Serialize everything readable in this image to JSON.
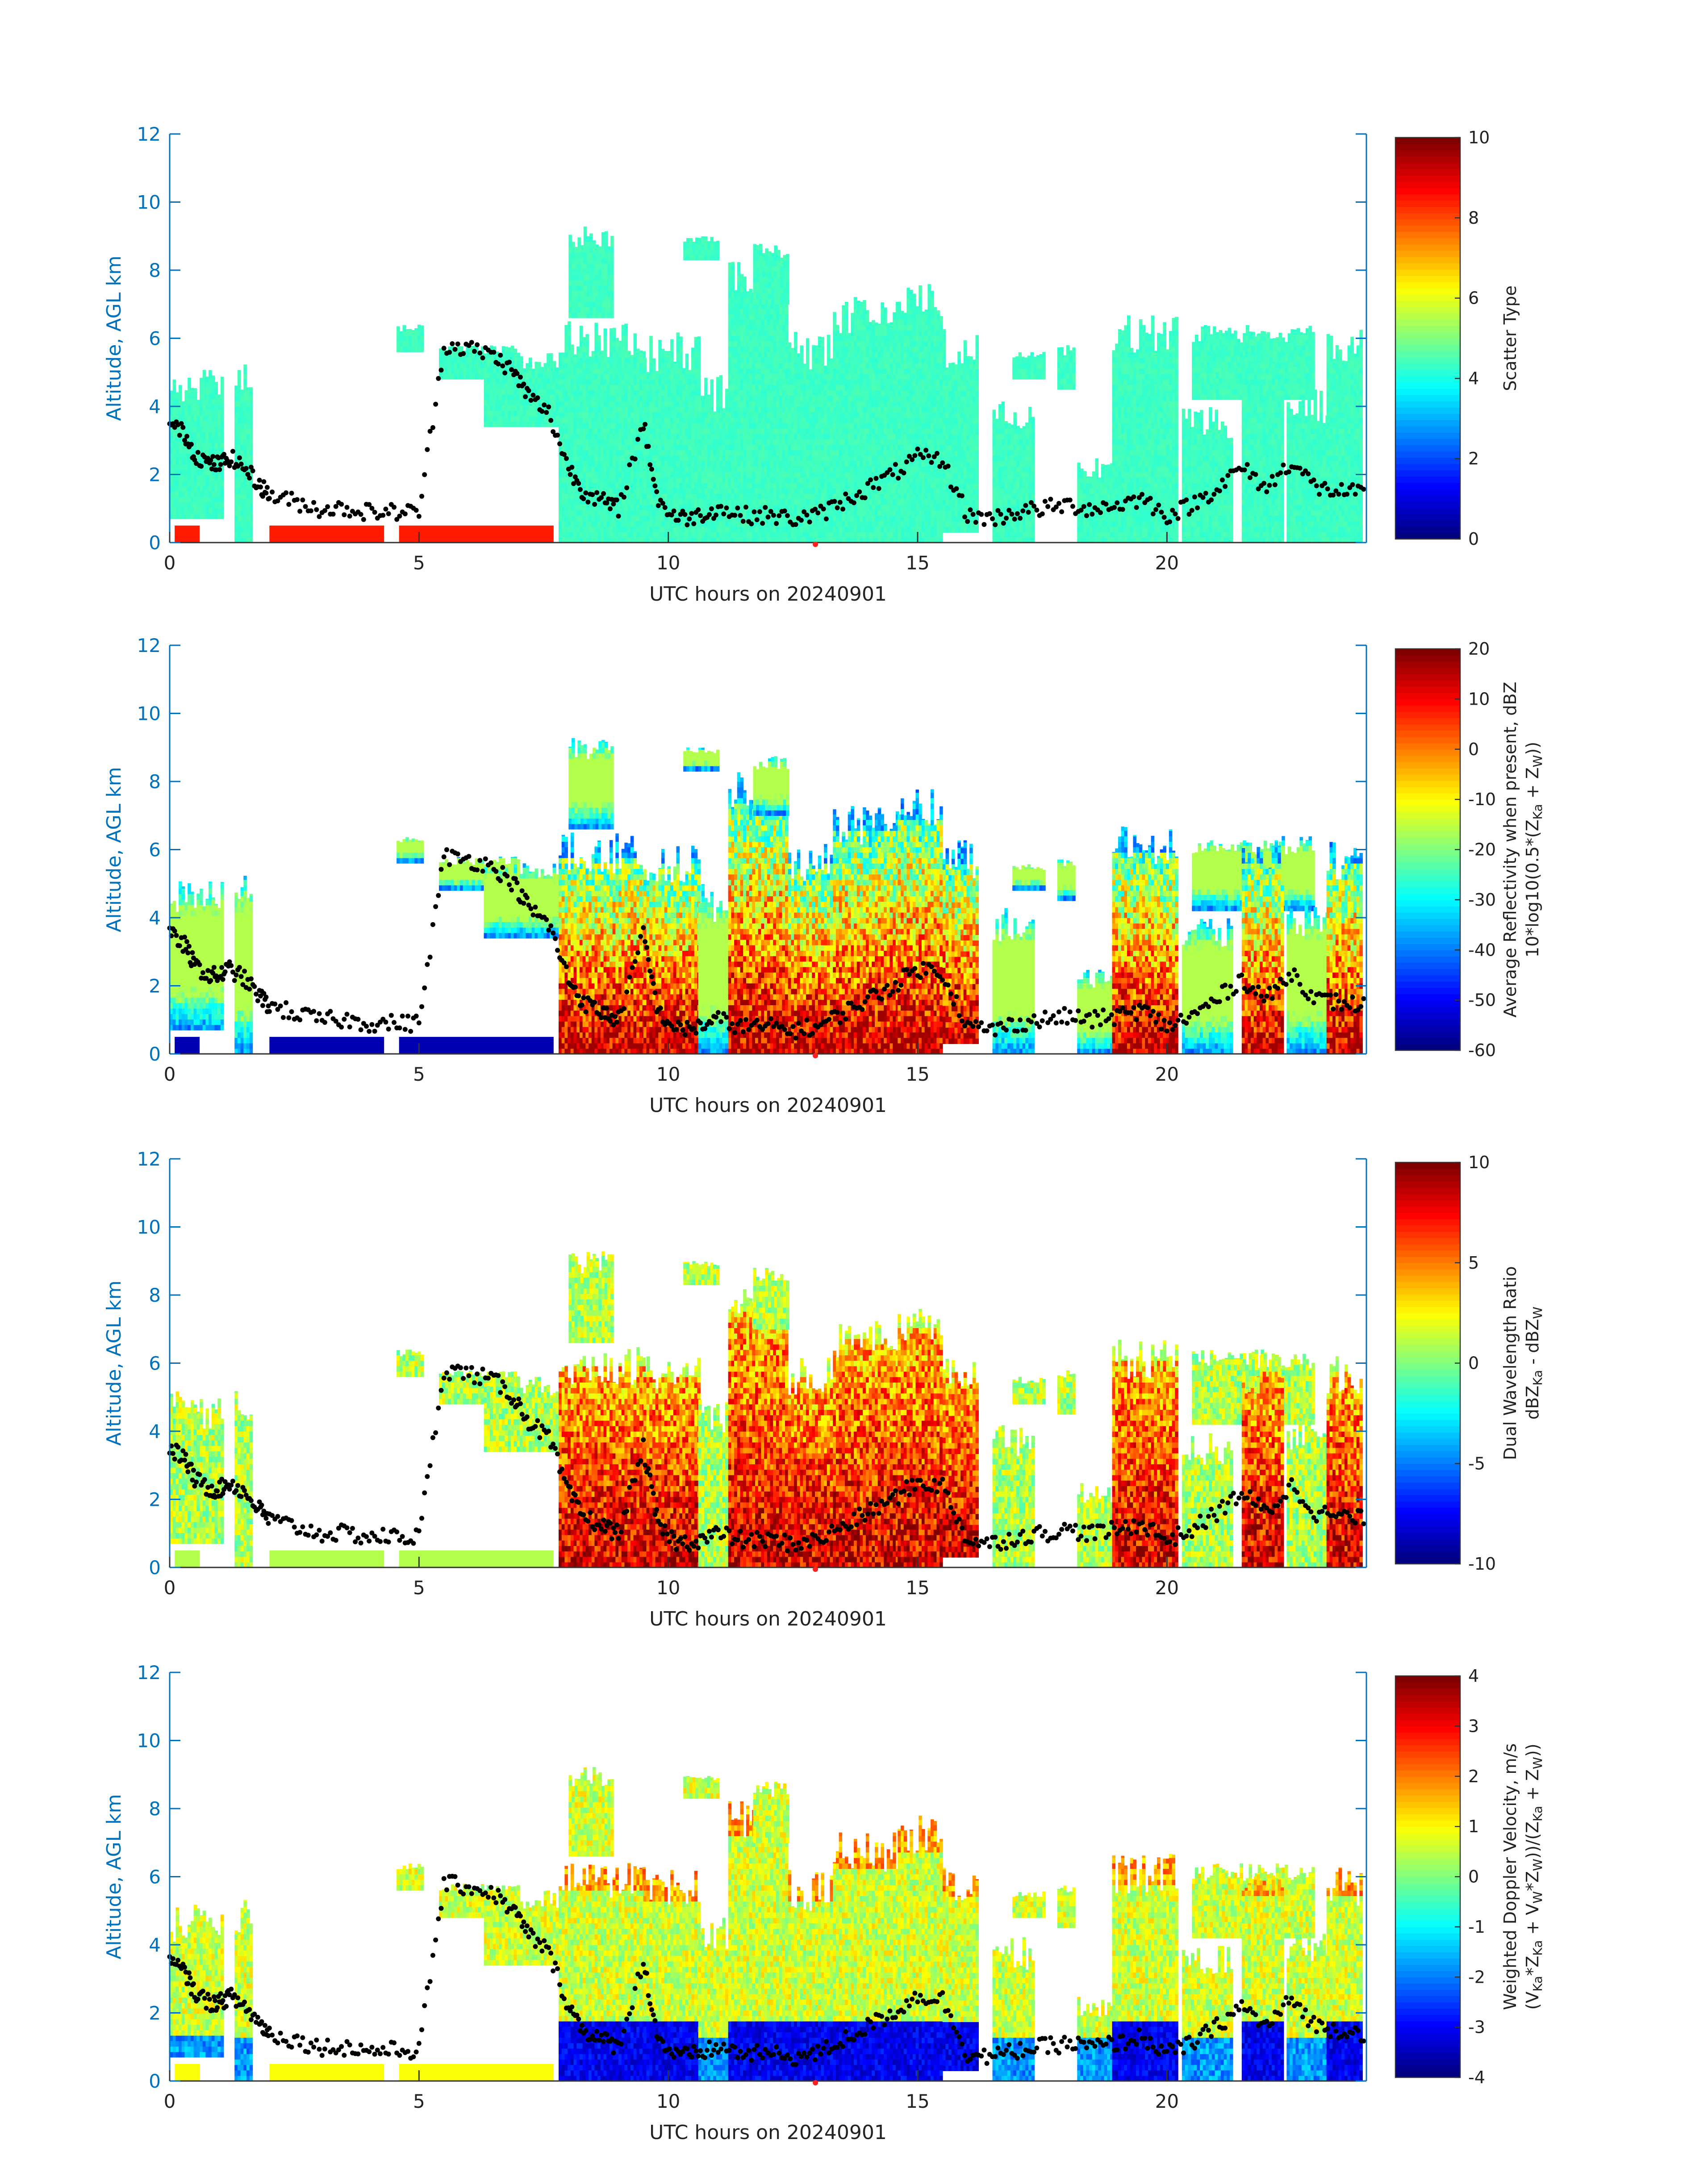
{
  "chart_data": [
    {
      "type": "heatmap",
      "xlabel": "UTC hours on 20240901",
      "ylabel": "Altitude, AGL km",
      "xlim": [
        0,
        24
      ],
      "ylim": [
        0,
        12
      ],
      "xticks": [
        "0",
        "5",
        "10",
        "15",
        "20"
      ],
      "yticks": [
        "0",
        "2",
        "4",
        "6",
        "8",
        "10",
        "12"
      ],
      "colorbar_label": [
        "Scatter Type"
      ],
      "colorbar_range": [
        0,
        10
      ],
      "colorbar_ticks": [
        "0",
        "2",
        "4",
        "6",
        "8",
        "10"
      ],
      "field": "scatter type",
      "dominant_value": 4.2,
      "secondary_value": 8.5,
      "marker_color": "#000000",
      "highlight_marker": {
        "x": 12.95,
        "color": "#ff2020"
      }
    },
    {
      "type": "heatmap",
      "xlabel": "UTC hours on 20240901",
      "ylabel": "Altitude, AGL km",
      "xlim": [
        0,
        24
      ],
      "ylim": [
        0,
        12
      ],
      "xticks": [
        "0",
        "5",
        "10",
        "15",
        "20"
      ],
      "yticks": [
        "0",
        "2",
        "4",
        "6",
        "8",
        "10",
        "12"
      ],
      "colorbar_label": [
        "Average Reflectivity when present, dBZ",
        "10*log10(0.5*(Z",
        "Ka",
        " + Z",
        "W",
        "))"
      ],
      "colorbar_range": [
        -60,
        20
      ],
      "colorbar_ticks": [
        "-60",
        "-50",
        "-40",
        "-30",
        "-20",
        "-10",
        "0",
        "10",
        "20"
      ],
      "field": "reflectivity"
    },
    {
      "type": "heatmap",
      "xlabel": "UTC hours on 20240901",
      "ylabel": "Altitude, AGL km",
      "xlim": [
        0,
        24
      ],
      "ylim": [
        0,
        12
      ],
      "xticks": [
        "0",
        "5",
        "10",
        "15",
        "20"
      ],
      "yticks": [
        "0",
        "2",
        "4",
        "6",
        "8",
        "10",
        "12"
      ],
      "colorbar_label": [
        "Dual Wavelength Ratio",
        "dBZ",
        "Ka",
        " - dBZ",
        "W"
      ],
      "colorbar_range": [
        -10,
        10
      ],
      "colorbar_ticks": [
        "-10",
        "-5",
        "0",
        "5",
        "10"
      ],
      "field": "dual wavelength ratio"
    },
    {
      "type": "heatmap",
      "xlabel": "UTC hours on 20240901",
      "ylabel": "Altitude, AGL km",
      "xlim": [
        0,
        24
      ],
      "ylim": [
        0,
        12
      ],
      "xticks": [
        "0",
        "5",
        "10",
        "15",
        "20"
      ],
      "yticks": [
        "0",
        "2",
        "4",
        "6",
        "8",
        "10",
        "12"
      ],
      "colorbar_label": [
        "Weighted Doppler Velocity, m/s",
        "(V",
        "Ka",
        "*Z",
        "Ka",
        " + V",
        "W",
        "*Z",
        "W",
        "))/(Z",
        "Ka",
        " + Z",
        "W",
        "))"
      ],
      "colorbar_range": [
        -4,
        4
      ],
      "colorbar_ticks": [
        "-4",
        "-3",
        "-2",
        "-1",
        "0",
        "1",
        "2",
        "3",
        "4"
      ],
      "field": "doppler velocity"
    }
  ],
  "echo_columns": [
    {
      "t0": 0.0,
      "t1": 1.05,
      "base": 0.7,
      "top": 5.2
    },
    {
      "t0": 1.3,
      "t1": 1.65,
      "base": 0.0,
      "top": 5.5
    },
    {
      "t0": 4.55,
      "t1": 5.05,
      "base": 5.6,
      "top": 6.4
    },
    {
      "t0": 5.4,
      "t1": 7.0,
      "base": 4.8,
      "top": 5.8
    },
    {
      "t0": 6.3,
      "t1": 7.8,
      "base": 3.4,
      "top": 5.6
    },
    {
      "t0": 7.8,
      "t1": 9.5,
      "base": 0.0,
      "top": 6.5
    },
    {
      "t0": 8.0,
      "t1": 8.9,
      "base": 6.6,
      "top": 9.3
    },
    {
      "t0": 9.5,
      "t1": 10.6,
      "base": 0.0,
      "top": 6.2
    },
    {
      "t0": 10.3,
      "t1": 11.0,
      "base": 8.3,
      "top": 9.0
    },
    {
      "t0": 10.6,
      "t1": 11.2,
      "base": 0.0,
      "top": 5.0
    },
    {
      "t0": 11.2,
      "t1": 12.4,
      "base": 0.0,
      "top": 8.3
    },
    {
      "t0": 11.7,
      "t1": 12.4,
      "base": 7.0,
      "top": 8.8
    },
    {
      "t0": 12.4,
      "t1": 13.3,
      "base": 0.0,
      "top": 6.2
    },
    {
      "t0": 13.3,
      "t1": 14.6,
      "base": 0.0,
      "top": 7.3
    },
    {
      "t0": 14.6,
      "t1": 15.5,
      "base": 0.0,
      "top": 7.8
    },
    {
      "t0": 15.5,
      "t1": 16.2,
      "base": 0.3,
      "top": 6.3
    },
    {
      "t0": 16.5,
      "t1": 17.3,
      "base": 0.0,
      "top": 4.3
    },
    {
      "t0": 16.9,
      "t1": 17.5,
      "base": 4.8,
      "top": 5.6
    },
    {
      "t0": 17.8,
      "t1": 18.1,
      "base": 4.5,
      "top": 5.8
    },
    {
      "t0": 18.2,
      "t1": 18.9,
      "base": 0.0,
      "top": 2.5
    },
    {
      "t0": 18.9,
      "t1": 20.2,
      "base": 0.0,
      "top": 6.7
    },
    {
      "t0": 20.3,
      "t1": 21.3,
      "base": 0.0,
      "top": 4.0
    },
    {
      "t0": 20.5,
      "t1": 22.9,
      "base": 4.2,
      "top": 6.4
    },
    {
      "t0": 21.5,
      "t1": 22.3,
      "base": 0.0,
      "top": 6.3
    },
    {
      "t0": 22.4,
      "t1": 23.2,
      "base": 0.0,
      "top": 4.5
    },
    {
      "t0": 23.2,
      "t1": 23.9,
      "base": 0.0,
      "top": 6.3
    }
  ],
  "low_clutter_segments": [
    {
      "t0": 0.1,
      "t1": 0.6
    },
    {
      "t0": 2.0,
      "t1": 4.3
    },
    {
      "t0": 4.6,
      "t1": 7.7
    }
  ],
  "marker_track": [
    [
      0.0,
      3.5
    ],
    [
      0.3,
      3.2
    ],
    [
      0.5,
      2.6
    ],
    [
      0.8,
      2.3
    ],
    [
      1.0,
      2.3
    ],
    [
      1.2,
      2.5
    ],
    [
      1.5,
      2.2
    ],
    [
      1.8,
      1.7
    ],
    [
      2.0,
      1.4
    ],
    [
      2.5,
      1.2
    ],
    [
      3.0,
      1.0
    ],
    [
      3.5,
      1.0
    ],
    [
      4.0,
      0.9
    ],
    [
      4.5,
      0.9
    ],
    [
      5.0,
      0.9
    ],
    [
      5.5,
      5.8
    ],
    [
      6.0,
      5.7
    ],
    [
      6.5,
      5.5
    ],
    [
      6.9,
      5.0
    ],
    [
      7.2,
      4.3
    ],
    [
      7.6,
      3.8
    ],
    [
      8.0,
      2.2
    ],
    [
      8.3,
      1.5
    ],
    [
      8.7,
      1.2
    ],
    [
      9.0,
      1.0
    ],
    [
      9.5,
      3.5
    ],
    [
      9.8,
      1.2
    ],
    [
      10.2,
      0.7
    ],
    [
      10.6,
      0.8
    ],
    [
      11.0,
      1.0
    ],
    [
      11.5,
      0.8
    ],
    [
      12.0,
      0.8
    ],
    [
      12.5,
      0.7
    ],
    [
      13.0,
      0.8
    ],
    [
      13.5,
      1.2
    ],
    [
      14.0,
      1.6
    ],
    [
      14.5,
      2.0
    ],
    [
      15.0,
      2.5
    ],
    [
      15.5,
      2.4
    ],
    [
      16.0,
      0.8
    ],
    [
      16.5,
      0.7
    ],
    [
      17.0,
      0.9
    ],
    [
      17.5,
      1.0
    ],
    [
      18.0,
      1.1
    ],
    [
      18.5,
      1.0
    ],
    [
      19.0,
      1.1
    ],
    [
      19.5,
      1.3
    ],
    [
      20.0,
      0.8
    ],
    [
      20.5,
      1.1
    ],
    [
      21.0,
      1.6
    ],
    [
      21.5,
      2.2
    ],
    [
      22.0,
      1.6
    ],
    [
      22.5,
      2.4
    ],
    [
      23.0,
      1.6
    ],
    [
      23.5,
      1.5
    ],
    [
      24.0,
      1.4
    ]
  ]
}
